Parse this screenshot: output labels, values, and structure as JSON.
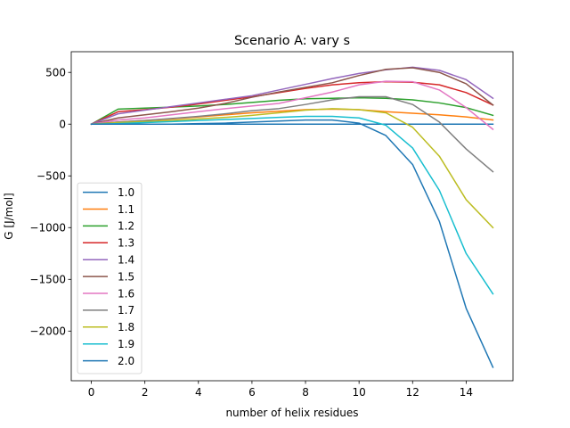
{
  "chart_data": {
    "type": "line",
    "title": "Scenario A: vary s",
    "xlabel": "number of helix residues",
    "ylabel": "G [J/mol]",
    "xlim": [
      -0.75,
      15.75
    ],
    "ylim": [
      -2480,
      700
    ],
    "xticks": [
      0,
      2,
      4,
      6,
      8,
      10,
      12,
      14
    ],
    "yticks": [
      500,
      0,
      -500,
      -1000,
      -1500,
      -2000
    ],
    "ytick_labels": [
      "500",
      "0",
      "−500",
      "−1000",
      "−1500",
      "−2000"
    ],
    "grid": false,
    "legend_position": "lower-left",
    "x": [
      0,
      1,
      2,
      3,
      4,
      5,
      6,
      7,
      8,
      9,
      10,
      11,
      12,
      13,
      14,
      15
    ],
    "series": [
      {
        "name": "1.0",
        "color": "#1f77b4",
        "values": [
          0,
          0,
          0,
          0,
          0,
          0,
          0,
          0,
          0,
          0,
          0,
          0,
          0,
          0,
          0,
          0
        ]
      },
      {
        "name": "1.1",
        "color": "#ff7f0e",
        "values": [
          0,
          20,
          35,
          50,
          70,
          90,
          110,
          125,
          140,
          145,
          140,
          120,
          105,
          90,
          70,
          40
        ]
      },
      {
        "name": "1.2",
        "color": "#2ca02c",
        "values": [
          0,
          145,
          155,
          165,
          175,
          190,
          210,
          230,
          245,
          250,
          255,
          250,
          235,
          205,
          160,
          85
        ]
      },
      {
        "name": "1.3",
        "color": "#d62728",
        "values": [
          0,
          120,
          140,
          165,
          195,
          230,
          265,
          305,
          345,
          380,
          400,
          410,
          405,
          380,
          305,
          185
        ]
      },
      {
        "name": "1.4",
        "color": "#9467bd",
        "values": [
          0,
          100,
          135,
          170,
          205,
          240,
          275,
          330,
          385,
          440,
          490,
          525,
          550,
          520,
          430,
          250
        ]
      },
      {
        "name": "1.5",
        "color": "#8c564b",
        "values": [
          0,
          60,
          90,
          120,
          155,
          200,
          260,
          310,
          355,
          400,
          470,
          530,
          545,
          500,
          390,
          185
        ]
      },
      {
        "name": "1.6",
        "color": "#e377c2",
        "values": [
          0,
          40,
          60,
          90,
          120,
          150,
          175,
          200,
          255,
          310,
          380,
          415,
          410,
          330,
          160,
          -50
        ]
      },
      {
        "name": "1.7",
        "color": "#7f7f7f",
        "values": [
          0,
          20,
          35,
          55,
          75,
          100,
          130,
          150,
          190,
          235,
          265,
          265,
          190,
          20,
          -240,
          -460
        ]
      },
      {
        "name": "1.8",
        "color": "#bcbd22",
        "values": [
          0,
          15,
          25,
          35,
          50,
          65,
          85,
          110,
          135,
          150,
          140,
          110,
          -30,
          -310,
          -730,
          -1000
        ]
      },
      {
        "name": "1.9",
        "color": "#17becf",
        "values": [
          0,
          5,
          15,
          25,
          35,
          45,
          55,
          65,
          75,
          75,
          60,
          -10,
          -230,
          -640,
          -1250,
          -1640
        ]
      },
      {
        "name": "2.0",
        "color": "#1f77b4",
        "values": [
          0,
          0,
          0,
          0,
          5,
          10,
          20,
          30,
          40,
          40,
          10,
          -110,
          -390,
          -940,
          -1780,
          -2350
        ]
      }
    ]
  }
}
